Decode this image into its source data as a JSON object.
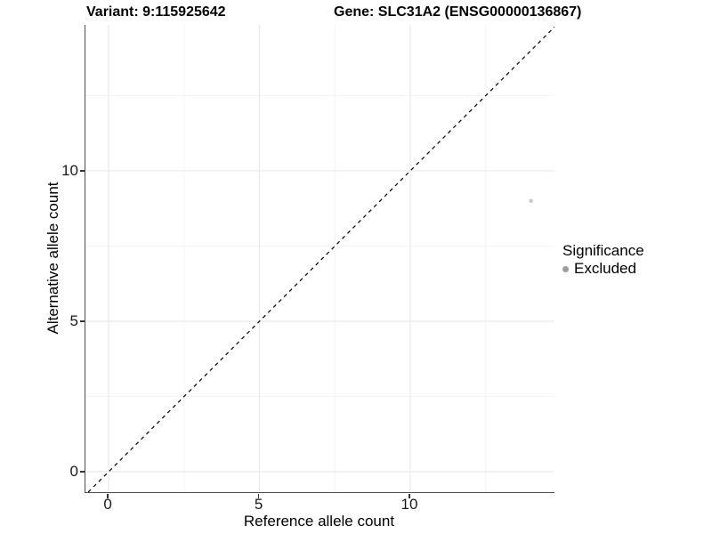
{
  "chart_data": {
    "type": "scatter",
    "title_variant": "Variant: 9:115925642",
    "title_gene": "Gene: SLC31A2 (ENSG00000136867)",
    "xlabel": "Reference allele count",
    "ylabel": "Alternative allele count",
    "xlim": [
      -0.77,
      14.78
    ],
    "ylim": [
      -0.68,
      14.85
    ],
    "x_ticks": [
      0,
      5,
      10
    ],
    "y_ticks": [
      0,
      5,
      10
    ],
    "x_minor_ticks": [
      2.5,
      7.5,
      12.5
    ],
    "y_minor_ticks": [
      2.5,
      7.5,
      12.5
    ],
    "grid": true,
    "points": [
      {
        "x": 14,
        "y": 9,
        "series": "Excluded",
        "color": "#c8c8c8",
        "radius": 2.3
      }
    ],
    "reference_line": {
      "kind": "diagonal y=x",
      "style": "dashed",
      "color": "#111111"
    },
    "legend": {
      "title": "Significance",
      "position": "right",
      "items": [
        {
          "label": "Excluded",
          "color": "#9e9e9e"
        }
      ]
    },
    "colors": {
      "background": "#ffffff",
      "axis_line": "#4d4d4d",
      "tick_mark": "#333333",
      "grid_major": "#eaeaea",
      "grid_minor": "#f4f4f4"
    }
  }
}
